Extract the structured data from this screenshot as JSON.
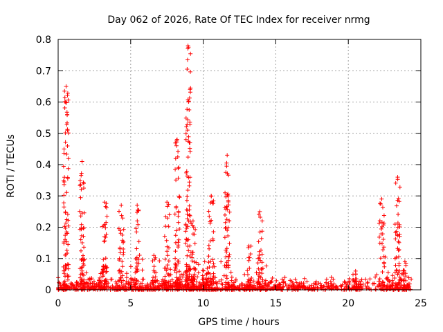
{
  "chart_data": {
    "type": "scatter",
    "title": "Day 062 of 2026, Rate Of TEC Index for receiver nrmg",
    "xlabel": "GPS time / hours",
    "ylabel": "ROTI / TECUs",
    "xlim": [
      0,
      25
    ],
    "ylim": [
      0,
      0.8
    ],
    "xticks": [
      0,
      5,
      10,
      15,
      20,
      25
    ],
    "yticks": [
      0,
      0.1,
      0.2,
      0.3,
      0.4,
      0.5,
      0.6,
      0.7,
      0.8
    ],
    "grid": true,
    "marker": "+",
    "color": "#ff0000",
    "baseline_band": {
      "from_hour": 0,
      "to_hour": 24.2,
      "typical_max": 0.03
    },
    "bursts": [
      {
        "x": 0.55,
        "peak": 0.65
      },
      {
        "x": 1.65,
        "peak": 0.41
      },
      {
        "x": 3.2,
        "peak": 0.28
      },
      {
        "x": 4.35,
        "peak": 0.27
      },
      {
        "x": 5.45,
        "peak": 0.27
      },
      {
        "x": 6.6,
        "peak": 0.11
      },
      {
        "x": 7.5,
        "peak": 0.28
      },
      {
        "x": 8.2,
        "peak": 0.48
      },
      {
        "x": 8.95,
        "peak": 0.78
      },
      {
        "x": 9.3,
        "peak": 0.22
      },
      {
        "x": 10.1,
        "peak": 0.09
      },
      {
        "x": 10.55,
        "peak": 0.3
      },
      {
        "x": 11.65,
        "peak": 0.43
      },
      {
        "x": 13.15,
        "peak": 0.14
      },
      {
        "x": 13.9,
        "peak": 0.25
      },
      {
        "x": 20.5,
        "peak": 0.06
      },
      {
        "x": 22.3,
        "peak": 0.29
      },
      {
        "x": 23.4,
        "peak": 0.36
      },
      {
        "x": 23.9,
        "peak": 0.09
      }
    ]
  }
}
